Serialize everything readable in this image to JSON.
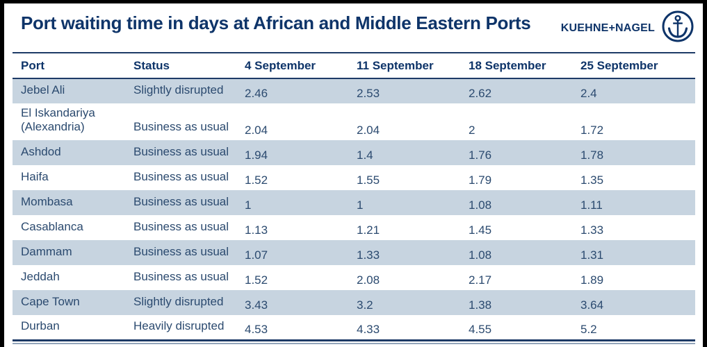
{
  "header": {
    "title": "Port waiting time in days at African and Middle Eastern Ports",
    "logo_text": "KUEHNE+NAGEL",
    "logo_icon": "anchor-icon"
  },
  "colors": {
    "brand_navy": "#0e3469",
    "cell_text": "#2b4a6f",
    "rule_navy": "#1d3a66",
    "rule_gray_blue": "#93a5ba",
    "row_alt_blue": "#c7d4e0",
    "frame_black": "#000000",
    "background": "#ffffff"
  },
  "table": {
    "columns": [
      "Port",
      "Status",
      "4 September",
      "11 September",
      "18 September",
      "25 September"
    ],
    "rows": [
      {
        "port": "Jebel Ali",
        "status": "Slightly disrupted",
        "values": [
          "2.46",
          "2.53",
          "2.62",
          "2.4"
        ]
      },
      {
        "port": "El Iskandariya (Alexandria)",
        "status": "Business as usual",
        "values": [
          "2.04",
          "2.04",
          "2",
          "1.72"
        ]
      },
      {
        "port": "Ashdod",
        "status": "Business as usual",
        "values": [
          "1.94",
          "1.4",
          "1.76",
          "1.78"
        ]
      },
      {
        "port": "Haifa",
        "status": "Business as usual",
        "values": [
          "1.52",
          "1.55",
          "1.79",
          "1.35"
        ]
      },
      {
        "port": "Mombasa",
        "status": "Business as usual",
        "values": [
          "1",
          "1",
          "1.08",
          "1.11"
        ]
      },
      {
        "port": "Casablanca",
        "status": "Business as usual",
        "values": [
          "1.13",
          "1.21",
          "1.45",
          "1.33"
        ]
      },
      {
        "port": "Dammam",
        "status": "Business as usual",
        "values": [
          "1.07",
          "1.33",
          "1.08",
          "1.31"
        ]
      },
      {
        "port": "Jeddah",
        "status": "Business as usual",
        "values": [
          "1.52",
          "2.08",
          "2.17",
          "1.89"
        ]
      },
      {
        "port": "Cape Town",
        "status": "Slightly disrupted",
        "values": [
          "3.43",
          "3.2",
          "1.38",
          "3.64"
        ]
      },
      {
        "port": "Durban",
        "status": "Heavily disrupted",
        "values": [
          "4.53",
          "4.33",
          "4.55",
          "5.2"
        ]
      }
    ]
  },
  "chart_data": {
    "type": "table",
    "title": "Port waiting time in days at African and Middle Eastern Ports",
    "unit": "days",
    "x": [
      "4 September",
      "11 September",
      "18 September",
      "25 September"
    ],
    "series": [
      {
        "name": "Jebel Ali",
        "status": "Slightly disrupted",
        "values": [
          2.46,
          2.53,
          2.62,
          2.4
        ]
      },
      {
        "name": "El Iskandariya (Alexandria)",
        "status": "Business as usual",
        "values": [
          2.04,
          2.04,
          2,
          1.72
        ]
      },
      {
        "name": "Ashdod",
        "status": "Business as usual",
        "values": [
          1.94,
          1.4,
          1.76,
          1.78
        ]
      },
      {
        "name": "Haifa",
        "status": "Business as usual",
        "values": [
          1.52,
          1.55,
          1.79,
          1.35
        ]
      },
      {
        "name": "Mombasa",
        "status": "Business as usual",
        "values": [
          1,
          1,
          1.08,
          1.11
        ]
      },
      {
        "name": "Casablanca",
        "status": "Business as usual",
        "values": [
          1.13,
          1.21,
          1.45,
          1.33
        ]
      },
      {
        "name": "Dammam",
        "status": "Business as usual",
        "values": [
          1.07,
          1.33,
          1.08,
          1.31
        ]
      },
      {
        "name": "Jeddah",
        "status": "Business as usual",
        "values": [
          1.52,
          2.08,
          2.17,
          1.89
        ]
      },
      {
        "name": "Cape Town",
        "status": "Slightly disrupted",
        "values": [
          3.43,
          3.2,
          1.38,
          3.64
        ]
      },
      {
        "name": "Durban",
        "status": "Heavily disrupted",
        "values": [
          4.53,
          4.33,
          4.55,
          5.2
        ]
      }
    ]
  }
}
